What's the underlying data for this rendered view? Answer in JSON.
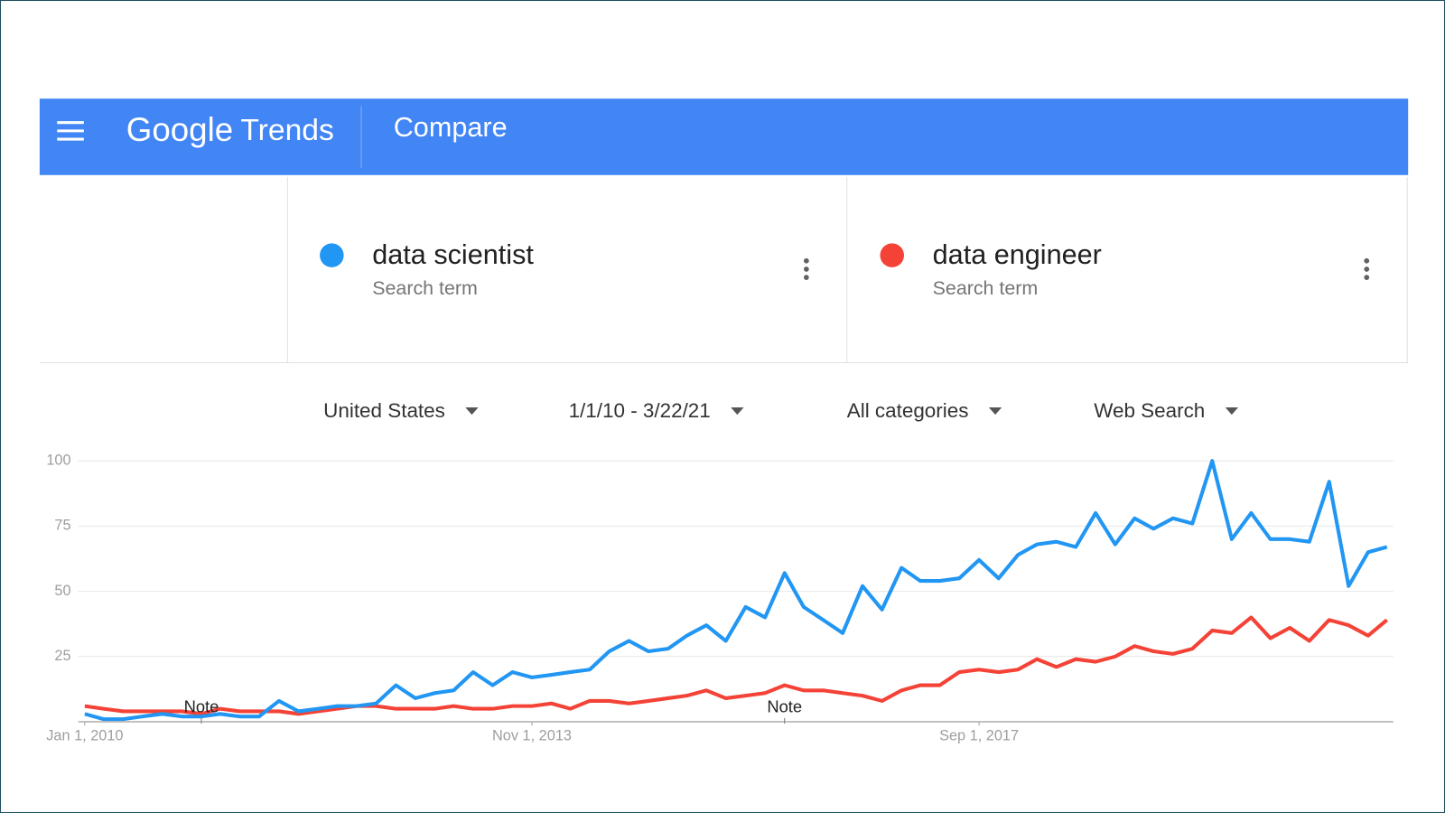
{
  "header": {
    "brand": "Google",
    "product": "Trends",
    "title": "Compare"
  },
  "term_labels": [
    "Search term",
    "Search term"
  ],
  "filters": [
    "United States",
    "1/1/10 - 3/22/21",
    "All categories",
    "Web Search"
  ],
  "chart_data": {
    "type": "line",
    "x": [
      "2010-01-01",
      "2010-03-01",
      "2010-05-01",
      "2010-07-01",
      "2010-09-01",
      "2010-11-01",
      "2011-01-01",
      "2011-03-01",
      "2011-05-01",
      "2011-07-01",
      "2011-09-01",
      "2011-11-01",
      "2012-01-01",
      "2012-03-01",
      "2012-05-01",
      "2012-07-01",
      "2012-09-01",
      "2012-11-01",
      "2013-01-01",
      "2013-03-01",
      "2013-05-01",
      "2013-07-01",
      "2013-09-01",
      "2013-11-01",
      "2014-01-01",
      "2014-03-01",
      "2014-05-01",
      "2014-07-01",
      "2014-09-01",
      "2014-11-01",
      "2015-01-01",
      "2015-03-01",
      "2015-05-01",
      "2015-07-01",
      "2015-09-01",
      "2015-11-01",
      "2016-01-01",
      "2016-03-01",
      "2016-05-01",
      "2016-07-01",
      "2016-09-01",
      "2016-11-01",
      "2017-01-01",
      "2017-03-01",
      "2017-05-01",
      "2017-07-01",
      "2017-09-01",
      "2017-11-01",
      "2018-01-01",
      "2018-03-01",
      "2018-05-01",
      "2018-07-01",
      "2018-09-01",
      "2018-11-01",
      "2019-01-01",
      "2019-03-01",
      "2019-05-01",
      "2019-07-01",
      "2019-09-01",
      "2019-11-01",
      "2020-01-01",
      "2020-03-01",
      "2020-05-01",
      "2020-07-01",
      "2020-09-01",
      "2020-11-01",
      "2021-01-01",
      "2021-03-01"
    ],
    "series": [
      {
        "name": "data scientist",
        "color": "#2196f3",
        "values": [
          3,
          1,
          1,
          2,
          3,
          2,
          2,
          3,
          2,
          2,
          8,
          4,
          5,
          6,
          6,
          7,
          14,
          9,
          11,
          12,
          19,
          14,
          19,
          17,
          18,
          19,
          20,
          27,
          31,
          27,
          28,
          33,
          37,
          31,
          44,
          40,
          57,
          44,
          39,
          34,
          52,
          43,
          59,
          54,
          54,
          55,
          62,
          55,
          64,
          68,
          69,
          67,
          80,
          68,
          78,
          74,
          78,
          76,
          100,
          70,
          80,
          70,
          70,
          69,
          92,
          52,
          65,
          67
        ]
      },
      {
        "name": "data engineer",
        "color": "#f44336",
        "values": [
          6,
          5,
          4,
          4,
          4,
          4,
          3,
          5,
          4,
          4,
          4,
          3,
          4,
          5,
          6,
          6,
          5,
          5,
          5,
          6,
          5,
          5,
          6,
          6,
          7,
          5,
          8,
          8,
          7,
          8,
          9,
          10,
          12,
          9,
          10,
          11,
          14,
          12,
          12,
          11,
          10,
          8,
          12,
          14,
          14,
          19,
          20,
          19,
          20,
          24,
          21,
          24,
          23,
          25,
          29,
          27,
          26,
          28,
          35,
          34,
          40,
          32,
          36,
          31,
          39,
          37,
          33,
          39
        ]
      }
    ],
    "xlim": [
      "2010-01-01",
      "2021-03-01"
    ],
    "xticks": [
      {
        "value": "2010-01-01",
        "label": "Jan 1, 2010"
      },
      {
        "value": "2013-11-01",
        "label": "Nov 1, 2013"
      },
      {
        "value": "2017-09-01",
        "label": "Sep 1, 2017"
      }
    ],
    "ylim": [
      0,
      100
    ],
    "yticks": [
      25,
      50,
      75,
      100
    ],
    "grid": true,
    "annotations": [
      {
        "x": "2011-01-01",
        "text": "Note"
      },
      {
        "x": "2016-01-01",
        "text": "Note"
      }
    ]
  }
}
